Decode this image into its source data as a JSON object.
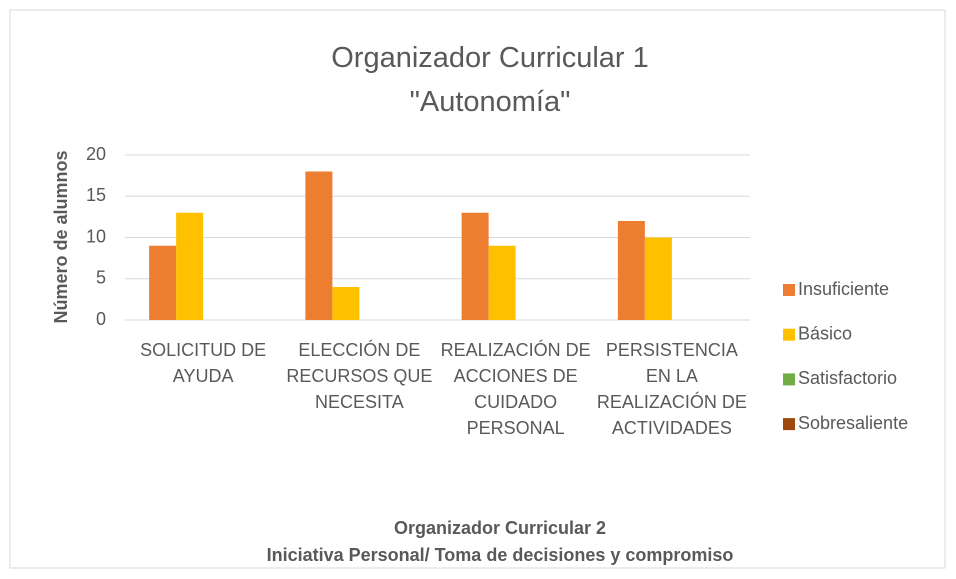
{
  "chart_data": {
    "type": "bar",
    "title": "Organizador Curricular 1 \"Autonomía\"",
    "ylabel": "Número de alumnos",
    "xlabel": [
      "Organizador Curricular 2",
      "Iniciativa Personal/ Toma de decisiones y compromiso"
    ],
    "categories": [
      "SOLICITUD DE AYUDA",
      "ELECCIÓN DE RECURSOS QUE NECESITA",
      "REALIZACIÓN DE ACCIONES DE CUIDADO PERSONAL",
      "PERSISTENCIA EN LA REALIZACIÓN DE ACTIVIDADES"
    ],
    "series": [
      {
        "name": "Insuficiente",
        "color": "#ED7D31",
        "values": [
          9,
          18,
          13,
          12
        ]
      },
      {
        "name": "Básico",
        "color": "#FFC000",
        "values": [
          13,
          4,
          9,
          10
        ]
      },
      {
        "name": "Satisfactorio",
        "color": "#70AD47",
        "values": [
          0,
          0,
          0,
          0
        ]
      },
      {
        "name": "Sobresaliente",
        "color": "#9E480E",
        "values": [
          0,
          0,
          0,
          0
        ]
      }
    ],
    "ylim": [
      0,
      20
    ],
    "yticks": [
      0,
      5,
      10,
      15,
      20
    ],
    "grid": true,
    "legend": "right"
  }
}
